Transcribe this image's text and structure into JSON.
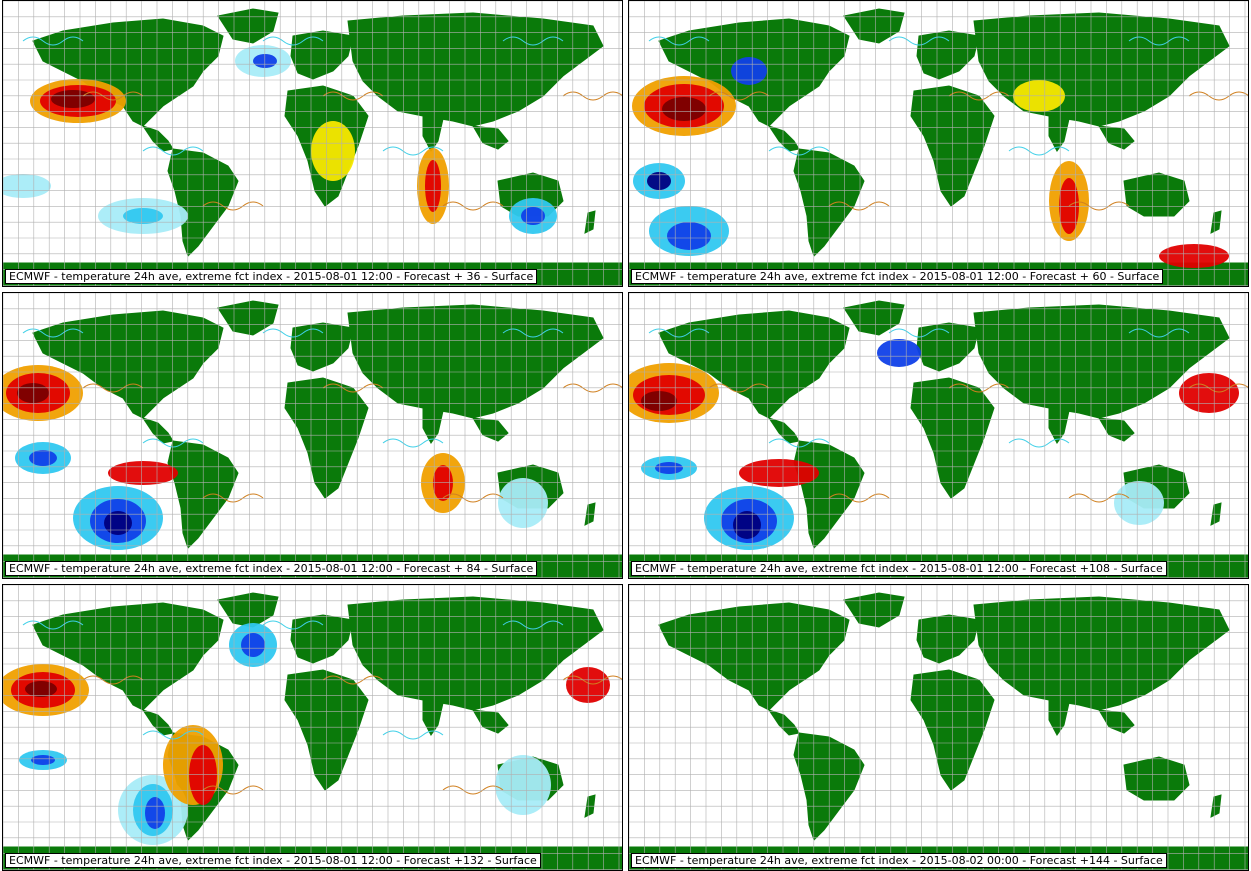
{
  "colors": {
    "land": "#0a7a0a",
    "grid": "#b0b0b0",
    "dark_red": "#7a0000",
    "red": "#e00000",
    "orange": "#f0a000",
    "yellow": "#f8e800",
    "light_cyan": "#a8ecf8",
    "cyan": "#30c8f0",
    "blue": "#1040e8",
    "dark_blue": "#000080",
    "contour_orange": "#d08020",
    "contour_cyan": "#40d0e8"
  },
  "panels": [
    {
      "id": "p0",
      "caption": "ECMWF - temperature 24h ave, extreme fct index - 2015-08-01 12:00 - Forecast + 36 - Surface",
      "has_field": true
    },
    {
      "id": "p1",
      "caption": "ECMWF - temperature 24h ave, extreme fct index - 2015-08-01 12:00 - Forecast + 60 - Surface",
      "has_field": true
    },
    {
      "id": "p2",
      "caption": "ECMWF - temperature 24h ave, extreme fct index - 2015-08-01 12:00 - Forecast + 84 - Surface",
      "has_field": true
    },
    {
      "id": "p3",
      "caption": "ECMWF - temperature 24h ave, extreme fct index - 2015-08-01 12:00 - Forecast +108 - Surface",
      "has_field": true
    },
    {
      "id": "p4",
      "caption": "ECMWF - temperature 24h ave, extreme fct index - 2015-08-01 12:00 - Forecast +132 - Surface",
      "has_field": true
    },
    {
      "id": "p5",
      "caption": "ECMWF - temperature 24h ave, extreme fct index - 2015-08-02 00:00 - Forecast +144 - Surface",
      "has_field": false
    }
  ]
}
